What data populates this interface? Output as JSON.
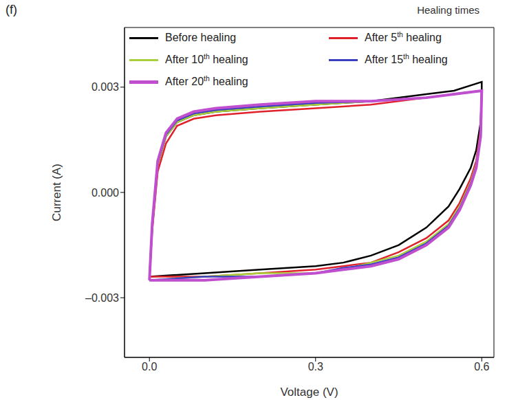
{
  "chart_data": {
    "type": "line",
    "panel_label": "(f)",
    "annotation": "Healing times",
    "x_label": "Voltage (V)",
    "y_label": "Current (A)",
    "x": [
      0,
      0.005,
      0.015,
      0.03,
      0.05,
      0.08,
      0.12,
      0.2,
      0.3,
      0.4,
      0.5,
      0.55,
      0.6,
      0.6,
      0.598,
      0.59,
      0.58,
      0.56,
      0.54,
      0.5,
      0.45,
      0.4,
      0.35,
      0.3,
      0.2,
      0.1,
      0
    ],
    "series": [
      {
        "name": "Before healing",
        "color": "#000000",
        "values": [
          -0.0024,
          -0.001,
          0.0008,
          0.0016,
          0.002,
          0.0022,
          0.0023,
          0.0024,
          0.0025,
          0.0026,
          0.0028,
          0.0029,
          0.00315,
          0.0029,
          0.002,
          0.0012,
          0.0007,
          0.0001,
          -0.0004,
          -0.001,
          -0.0015,
          -0.0018,
          -0.002,
          -0.0021,
          -0.0022,
          -0.0023,
          -0.0024
        ]
      },
      {
        "name": "After 5th healing",
        "color": "#e0202a",
        "values": [
          -0.0024,
          -0.0011,
          0.0006,
          0.0014,
          0.0019,
          0.0021,
          0.0022,
          0.0023,
          0.0024,
          0.0025,
          0.0027,
          0.0028,
          0.0029,
          0.0029,
          0.0018,
          0.0009,
          0.0004,
          -0.0003,
          -0.0008,
          -0.0013,
          -0.0017,
          -0.002,
          -0.0021,
          -0.0022,
          -0.0023,
          -0.0024,
          -0.0024
        ]
      },
      {
        "name": "After 10th healing",
        "color": "#a8d03a",
        "values": [
          -0.0025,
          -0.001,
          0.0008,
          0.0016,
          0.002,
          0.0022,
          0.0023,
          0.0024,
          0.0025,
          0.0026,
          0.0027,
          0.0028,
          0.0029,
          0.0029,
          0.0017,
          0.0008,
          0.0003,
          -0.0004,
          -0.0009,
          -0.0014,
          -0.0018,
          -0.002,
          -0.0022,
          -0.0023,
          -0.0023,
          -0.0024,
          -0.0025
        ]
      },
      {
        "name": "After 15th healing",
        "color": "#3a3fc0",
        "values": [
          -0.0025,
          -0.00095,
          0.00085,
          0.00165,
          0.00205,
          0.00225,
          0.00235,
          0.00245,
          0.00255,
          0.0026,
          0.0027,
          0.0028,
          0.0029,
          0.0029,
          0.0016,
          0.00075,
          0.00025,
          -0.00045,
          -0.00095,
          -0.00145,
          -0.00185,
          -0.00205,
          -0.00215,
          -0.0023,
          -0.0024,
          -0.0024,
          -0.0025
        ]
      },
      {
        "name": "After 20th healing",
        "color": "#c04fd0",
        "values": [
          -0.0025,
          -0.0009,
          0.0009,
          0.0017,
          0.0021,
          0.0023,
          0.0024,
          0.0025,
          0.0026,
          0.0026,
          0.0027,
          0.0028,
          0.0029,
          0.0029,
          0.0016,
          0.0007,
          0.0002,
          -0.0005,
          -0.001,
          -0.0015,
          -0.0019,
          -0.0021,
          -0.0022,
          -0.0023,
          -0.0024,
          -0.0025,
          -0.0025
        ]
      }
    ],
    "xlim": [
      -0.045,
      0.622
    ],
    "xticks": [
      {
        "value": 0,
        "label": "0.0"
      },
      {
        "value": 0.3,
        "label": "0.3"
      },
      {
        "value": 0.6,
        "label": "0.6"
      }
    ],
    "ylim": [
      -0.0047,
      0.0047
    ],
    "yticks": [
      {
        "value": -0.003,
        "label": "–0.003"
      },
      {
        "value": 0,
        "label": "0.000"
      },
      0.003
    ],
    "grid": false,
    "legend": "upper left"
  }
}
